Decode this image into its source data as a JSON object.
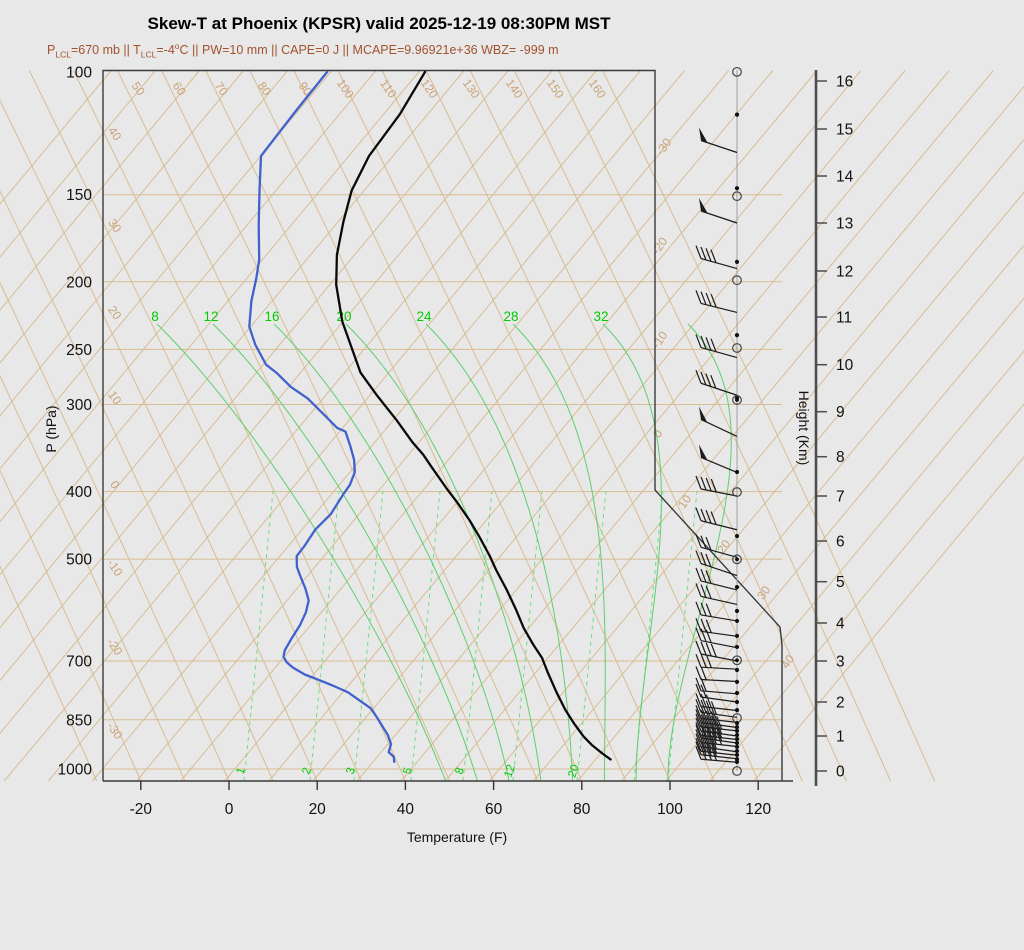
{
  "header": {
    "title": "Skew-T at Phoenix (KPSR) valid 2025-12-19 08:30PM MST",
    "params": {
      "t1": "P",
      "s1": "LCL",
      "t2": "=670 mb || T",
      "s2": "LCL",
      "t3": "=-4",
      "sup1": "o",
      "t4": "C || PW=10 mm || CAPE=0 J || MCAPE=9.96921e+36 WBZ= -999 m"
    }
  },
  "axes": {
    "pressure": {
      "title": "P (hPa)",
      "ticks": [
        100,
        150,
        200,
        250,
        300,
        400,
        500,
        700,
        850,
        1000
      ]
    },
    "temperature": {
      "title": "Temperature (F)",
      "ticks": [
        -20,
        0,
        20,
        40,
        60,
        80,
        100,
        120
      ]
    },
    "height": {
      "title": "Height (Km)",
      "ticks": [
        0,
        1,
        2,
        3,
        4,
        5,
        6,
        7,
        8,
        9,
        10,
        11,
        12,
        13,
        14,
        15,
        16
      ]
    }
  },
  "grid_labels": {
    "dry_adiabats_top_F": [
      50,
      60,
      70,
      80,
      90,
      100,
      110,
      120,
      130,
      140,
      150,
      160
    ],
    "dry_adiabats_left_F": [
      40,
      30,
      20,
      10,
      0,
      -10,
      -20,
      -30
    ],
    "isotherms_right_C": [
      -30,
      -20,
      -10,
      0,
      10,
      20,
      30,
      40
    ],
    "moist_adiabats_C": [
      8,
      12,
      16,
      20,
      24,
      28,
      32
    ],
    "mixing_ratio_gkg": [
      1,
      2,
      3,
      5,
      8,
      12,
      20
    ]
  },
  "chart_data": {
    "type": "skewt-logp-sounding",
    "station": "Phoenix (KPSR)",
    "valid": "2025-12-19 08:30PM MST",
    "pressure_range_hPa": [
      100,
      1050
    ],
    "temperature_axis_range_F": [
      -30,
      125
    ],
    "height_range_km": [
      0,
      16
    ],
    "temperature_profile_pT": [
      [
        100,
        -88.6
      ],
      [
        115,
        -86.3
      ],
      [
        132,
        -85.4
      ],
      [
        148,
        -82.8
      ],
      [
        164,
        -78.8
      ],
      [
        183,
        -74.0
      ],
      [
        202,
        -68.5
      ],
      [
        228,
        -60.2
      ],
      [
        270,
        -46.4
      ],
      [
        291,
        -38.4
      ],
      [
        316,
        -29.2
      ],
      [
        340,
        -21.4
      ],
      [
        354,
        -16.7
      ],
      [
        369,
        -12.4
      ],
      [
        398,
        -4.4
      ],
      [
        414,
        -0.1
      ],
      [
        440,
        6.3
      ],
      [
        465,
        11.7
      ],
      [
        495,
        17.6
      ],
      [
        519,
        21.8
      ],
      [
        554,
        27.9
      ],
      [
        591,
        33.7
      ],
      [
        628,
        38.9
      ],
      [
        664,
        44.3
      ],
      [
        693,
        48.7
      ],
      [
        726,
        52.6
      ],
      [
        775,
        58.3
      ],
      [
        822,
        63.7
      ],
      [
        861,
        68.4
      ],
      [
        898,
        72.9
      ],
      [
        925,
        76.6
      ],
      [
        950,
        80.4
      ],
      [
        969,
        83.4
      ]
    ],
    "dewpoint_profile_pT": [
      [
        100,
        -110.8
      ],
      [
        114,
        -110.5
      ],
      [
        132,
        -109.9
      ],
      [
        148,
        -103.7
      ],
      [
        166,
        -97.3
      ],
      [
        186,
        -90.7
      ],
      [
        198,
        -87.8
      ],
      [
        213,
        -84.7
      ],
      [
        232,
        -80.3
      ],
      [
        246,
        -75.6
      ],
      [
        263,
        -69.3
      ],
      [
        270,
        -65.5
      ],
      [
        283,
        -59.5
      ],
      [
        294,
        -53.5
      ],
      [
        313,
        -45.6
      ],
      [
        324,
        -41.3
      ],
      [
        328,
        -38.7
      ],
      [
        343,
        -35.1
      ],
      [
        360,
        -31.4
      ],
      [
        375,
        -28.9
      ],
      [
        391,
        -27.6
      ],
      [
        404,
        -27.3
      ],
      [
        431,
        -26.4
      ],
      [
        453,
        -27.0
      ],
      [
        477,
        -26.4
      ],
      [
        495,
        -26.2
      ],
      [
        513,
        -24.1
      ],
      [
        527,
        -21.9
      ],
      [
        551,
        -18.1
      ],
      [
        573,
        -15.1
      ],
      [
        596,
        -13.5
      ],
      [
        622,
        -12.4
      ],
      [
        650,
        -11.8
      ],
      [
        676,
        -11.1
      ],
      [
        690,
        -10.2
      ],
      [
        703,
        -8.4
      ],
      [
        715,
        -6.1
      ],
      [
        732,
        -2.0
      ],
      [
        746,
        2.5
      ],
      [
        759,
        6.4
      ],
      [
        776,
        11.1
      ],
      [
        802,
        16.2
      ],
      [
        818,
        19.3
      ],
      [
        846,
        22.8
      ],
      [
        871,
        25.7
      ],
      [
        894,
        28.3
      ],
      [
        921,
        30.7
      ],
      [
        946,
        31.7
      ],
      [
        961,
        33.8
      ],
      [
        977,
        34.8
      ]
    ],
    "wind": {
      "barbs_km_flag_ticks_tilt": [
        [
          14.5,
          1,
          0,
          -12
        ],
        [
          13.0,
          1,
          0,
          -12
        ],
        [
          12.05,
          0,
          4,
          -10
        ],
        [
          11.1,
          0,
          4,
          -9
        ],
        [
          10.15,
          0,
          4,
          -10
        ],
        [
          9.35,
          0,
          4,
          -12
        ],
        [
          8.45,
          1,
          0,
          -17
        ],
        [
          7.6,
          1,
          0,
          -15
        ],
        [
          7.0,
          0,
          4,
          -7
        ],
        [
          6.25,
          0,
          4,
          -9
        ],
        [
          5.6,
          0,
          3,
          -10
        ],
        [
          5.15,
          0,
          3,
          -12
        ],
        [
          4.8,
          0,
          3,
          -9
        ],
        [
          4.45,
          0,
          3,
          -8
        ],
        [
          4.05,
          0,
          3,
          -6
        ],
        [
          3.65,
          0,
          3,
          -5
        ],
        [
          3.35,
          0,
          3,
          -7
        ],
        [
          3.0,
          0,
          4,
          -7
        ],
        [
          2.8,
          0,
          3,
          -2
        ],
        [
          2.5,
          0,
          2,
          -2
        ],
        [
          2.2,
          0,
          2,
          -3
        ],
        [
          2.0,
          0,
          2,
          -5
        ],
        [
          1.75,
          0,
          3,
          -4
        ],
        [
          1.55,
          0,
          4,
          -5
        ],
        [
          1.4,
          0,
          4,
          -4
        ],
        [
          1.25,
          0,
          4,
          -5
        ],
        [
          1.15,
          0,
          5,
          -4
        ],
        [
          1.0,
          0,
          5,
          -5
        ],
        [
          0.9,
          0,
          5,
          -4
        ],
        [
          0.8,
          0,
          5,
          -5
        ],
        [
          0.7,
          0,
          5,
          -4
        ],
        [
          0.55,
          0,
          4,
          -5
        ],
        [
          0.45,
          0,
          4,
          -4
        ],
        [
          0.35,
          0,
          4,
          -4
        ],
        [
          0.25,
          0,
          4,
          -3
        ]
      ],
      "staff_dots_km": [
        15.3,
        13.74,
        12.19,
        10.62,
        9.29,
        7.61,
        6.11,
        4.87,
        4.29,
        4.05,
        3.66,
        3.37,
        2.78,
        2.49,
        2.22,
        2.0,
        1.76,
        1.38,
        1.26,
        1.15,
        1.03,
        0.91,
        0.8,
        0.69,
        0.57,
        0.46,
        0.34,
        0.26
      ],
      "staff_circles_km": [
        [
          16.19,
          0
        ],
        [
          13.57,
          0
        ],
        [
          11.8,
          0
        ],
        [
          10.35,
          0
        ],
        [
          9.25,
          1
        ],
        [
          7.1,
          0
        ],
        [
          5.55,
          1
        ],
        [
          3.02,
          1
        ],
        [
          1.53,
          0
        ],
        [
          0,
          0
        ]
      ]
    }
  },
  "colors": {
    "background": "#e8e8e8",
    "tan_lines": "#d8bc92",
    "tan_labels": "#c9a377",
    "green_solid": "#5ecf6e",
    "green_dashed": "#6fdd7f",
    "green_labels": "#00cc00",
    "dewpoint_blue": "#4161cd",
    "temperature_black": "#0a0a0a",
    "subtitle_brown": "#a0522d",
    "frame": "#3a3a3a",
    "barb_dark": "#1c1c1c",
    "staff_gray": "#a0a0a0"
  }
}
